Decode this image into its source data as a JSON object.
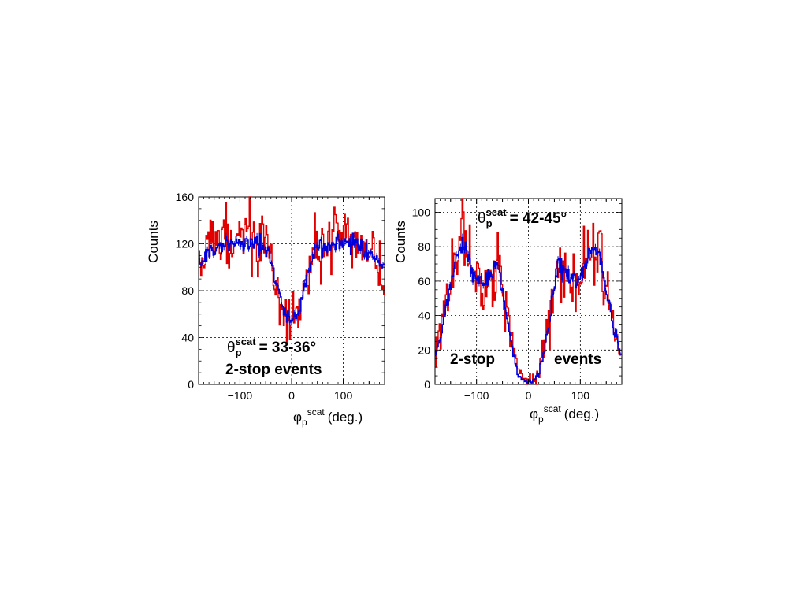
{
  "chart_data": [
    {
      "type": "line",
      "ylabel": "Counts",
      "xlabel_main": "φ",
      "xlabel_sub": "p",
      "xlabel_sup": "scat",
      "xlabel_unit": "(deg.)",
      "annotation_theta": "θ",
      "annotation_sub": "p",
      "annotation_sup": "scat",
      "annotation_value": "= 33-36°",
      "annotation_text2": "2-stop events",
      "xlim": [
        -180,
        180
      ],
      "ylim": [
        0,
        160
      ],
      "xticks": [
        -100,
        0,
        100
      ],
      "xtick_labels": [
        "−100",
        "0",
        "100"
      ],
      "yticks": [
        0,
        40,
        80,
        120,
        160
      ],
      "ytick_labels": [
        "0",
        "40",
        "80",
        "120",
        "160"
      ],
      "grid": true,
      "bins": 180,
      "series": [
        {
          "color": "#e00000",
          "style": "data",
          "x": [
            -180,
            -160,
            -140,
            -120,
            -100,
            -80,
            -60,
            -45,
            -30,
            -20,
            -10,
            0,
            10,
            20,
            30,
            45,
            60,
            80,
            100,
            120,
            140,
            160,
            180
          ],
          "y": [
            93,
            118,
            124,
            126,
            124,
            123,
            121,
            115,
            85,
            68,
            57,
            48,
            57,
            70,
            90,
            115,
            121,
            124,
            122,
            121,
            119,
            110,
            82
          ]
        },
        {
          "color": "#0000dd",
          "style": "simulation",
          "x": [
            -180,
            -160,
            -140,
            -120,
            -100,
            -80,
            -60,
            -45,
            -30,
            -20,
            -10,
            0,
            10,
            20,
            30,
            45,
            60,
            80,
            100,
            120,
            140,
            160,
            180
          ],
          "y": [
            100,
            114,
            118,
            121,
            122,
            121,
            119,
            112,
            88,
            70,
            58,
            54,
            58,
            72,
            92,
            113,
            119,
            121,
            121,
            119,
            115,
            108,
            100
          ]
        }
      ]
    },
    {
      "type": "line",
      "ylabel": "Counts",
      "xlabel_main": "φ",
      "xlabel_sub": "p",
      "xlabel_sup": "scat",
      "xlabel_unit": "(deg.)",
      "annotation_theta": "θ",
      "annotation_sub": "p",
      "annotation_sup": "scat",
      "annotation_value": "= 42-45°",
      "annotation_text2a": "2-stop",
      "annotation_text2b": "events",
      "xlim": [
        -180,
        180
      ],
      "ylim": [
        0,
        108
      ],
      "xticks": [
        -100,
        0,
        100
      ],
      "xtick_labels": [
        "−100",
        "0",
        "100"
      ],
      "yticks": [
        0,
        20,
        40,
        60,
        80,
        100
      ],
      "ytick_labels": [
        "0",
        "20",
        "40",
        "60",
        "80",
        "100"
      ],
      "grid": true,
      "bins": 180,
      "series": [
        {
          "color": "#e00000",
          "style": "data",
          "x": [
            -180,
            -165,
            -150,
            -140,
            -130,
            -120,
            -110,
            -100,
            -90,
            -80,
            -70,
            -60,
            -50,
            -40,
            -30,
            -20,
            -10,
            0,
            10,
            20,
            30,
            40,
            50,
            60,
            70,
            80,
            90,
            100,
            110,
            120,
            130,
            140,
            150,
            165,
            180
          ],
          "y": [
            20,
            38,
            62,
            72,
            80,
            77,
            70,
            60,
            55,
            58,
            63,
            68,
            55,
            38,
            20,
            8,
            3,
            2,
            3,
            8,
            20,
            38,
            58,
            72,
            66,
            58,
            55,
            60,
            72,
            78,
            80,
            70,
            52,
            30,
            18
          ]
        },
        {
          "color": "#0000dd",
          "style": "simulation",
          "x": [
            -180,
            -165,
            -150,
            -140,
            -130,
            -120,
            -110,
            -100,
            -90,
            -80,
            -70,
            -60,
            -50,
            -40,
            -30,
            -20,
            -10,
            0,
            10,
            20,
            30,
            40,
            50,
            60,
            70,
            80,
            90,
            100,
            110,
            120,
            130,
            140,
            150,
            165,
            180
          ],
          "y": [
            16,
            34,
            58,
            70,
            80,
            78,
            70,
            62,
            58,
            60,
            66,
            70,
            56,
            36,
            18,
            6,
            2,
            1,
            2,
            6,
            18,
            36,
            56,
            70,
            66,
            60,
            58,
            62,
            70,
            78,
            80,
            70,
            56,
            32,
            16
          ]
        }
      ]
    }
  ]
}
